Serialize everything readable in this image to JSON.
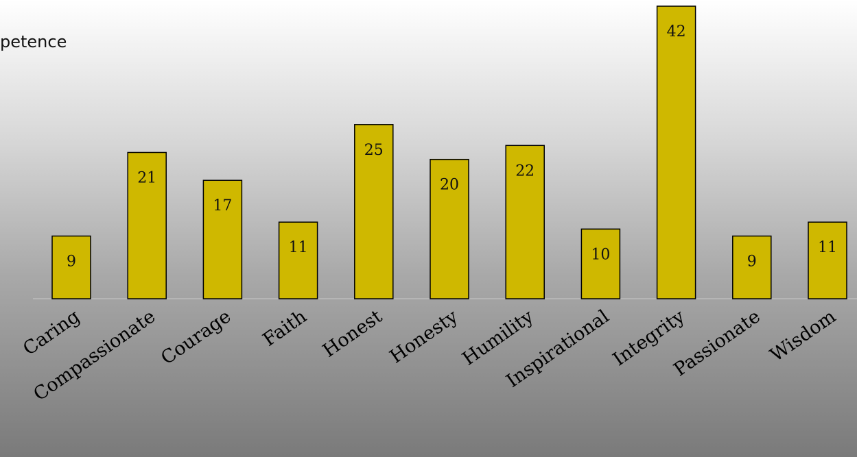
{
  "header": {
    "partial_title": "petence"
  },
  "chart_data": {
    "type": "bar",
    "title": "",
    "xlabel": "",
    "ylabel": "",
    "categories": [
      "Caring",
      "Compassionate",
      "Courage",
      "Faith",
      "Honest",
      "Honesty",
      "Humility",
      "Inspirational",
      "Integrity",
      "Passionate",
      "Wisdom"
    ],
    "values": [
      9,
      21,
      17,
      11,
      25,
      20,
      22,
      10,
      42,
      9,
      11
    ],
    "ylim": [
      0,
      42
    ],
    "grid": false,
    "legend": "none",
    "data_labels": true,
    "bar_color": "#cfb800",
    "axis_color": "#bdbdbd"
  }
}
